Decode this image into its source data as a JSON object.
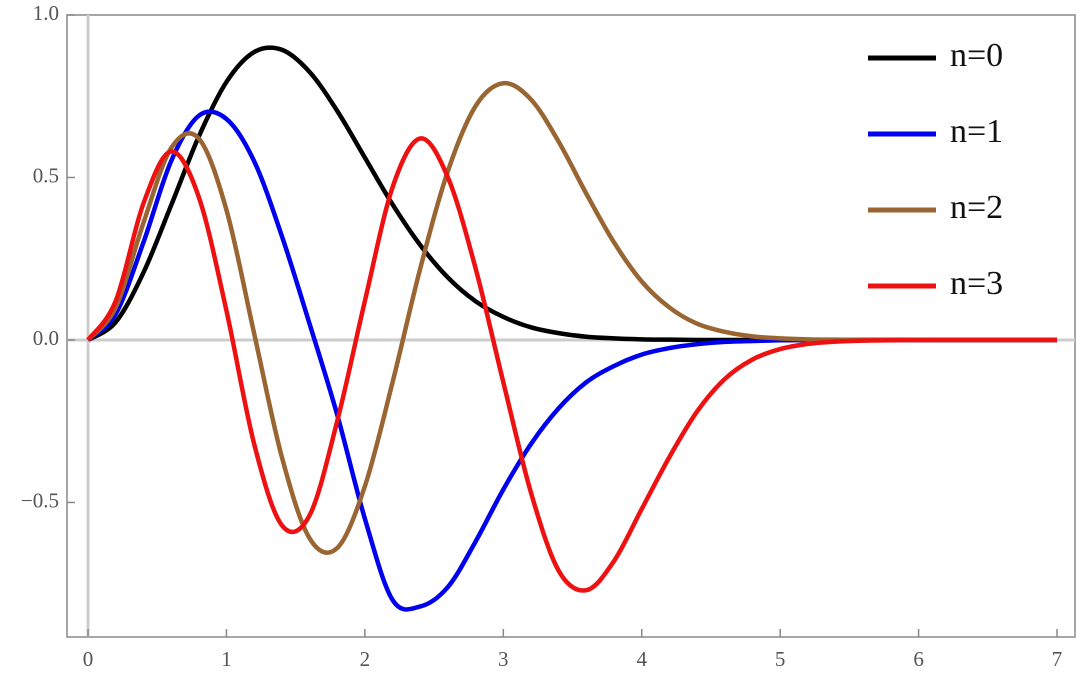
{
  "chart_data": {
    "type": "line",
    "x": [
      0,
      0.2,
      0.4,
      0.6,
      0.8,
      1.0,
      1.2,
      1.4,
      1.6,
      1.8,
      2.0,
      2.2,
      2.4,
      2.6,
      2.8,
      3.0,
      3.2,
      3.4,
      3.6,
      3.8,
      4.0,
      4.2,
      4.4,
      4.6,
      4.8,
      5.0,
      5.2,
      5.4,
      5.6,
      5.8,
      6.0,
      6.2,
      6.4,
      6.6,
      6.8,
      7.0
    ],
    "series": [
      {
        "name": "n=0",
        "color": "#000000",
        "values": [
          0,
          0.055,
          0.207,
          0.414,
          0.626,
          0.794,
          0.886,
          0.893,
          0.825,
          0.705,
          0.561,
          0.417,
          0.292,
          0.192,
          0.119,
          0.071,
          0.039,
          0.021,
          0.01,
          0.005,
          0.002,
          0.001,
          0,
          0,
          0,
          0,
          0,
          0,
          0,
          0,
          0,
          0,
          0,
          0,
          0,
          0
        ]
      },
      {
        "name": "n=1",
        "color": "#0000ee",
        "values": [
          0,
          0.08,
          0.3,
          0.55,
          0.69,
          0.68,
          0.55,
          0.32,
          0.05,
          -0.23,
          -0.55,
          -0.8,
          -0.82,
          -0.76,
          -0.62,
          -0.46,
          -0.32,
          -0.21,
          -0.13,
          -0.08,
          -0.045,
          -0.025,
          -0.013,
          -0.006,
          -0.003,
          -0.001,
          0,
          0,
          0,
          0,
          0,
          0,
          0,
          0,
          0,
          0
        ]
      },
      {
        "name": "n=2",
        "color": "#996633",
        "values": [
          0,
          0.1,
          0.36,
          0.59,
          0.62,
          0.4,
          0.02,
          -0.36,
          -0.61,
          -0.64,
          -0.45,
          -0.13,
          0.22,
          0.52,
          0.72,
          0.79,
          0.74,
          0.61,
          0.45,
          0.3,
          0.18,
          0.1,
          0.05,
          0.025,
          0.011,
          0.005,
          0.002,
          0.001,
          0,
          0,
          0,
          0,
          0,
          0,
          0,
          0
        ]
      },
      {
        "name": "n=3",
        "color": "#ee1111",
        "values": [
          0,
          0.12,
          0.42,
          0.58,
          0.44,
          0.09,
          -0.32,
          -0.57,
          -0.54,
          -0.25,
          0.12,
          0.47,
          0.62,
          0.5,
          0.22,
          -0.13,
          -0.47,
          -0.71,
          -0.77,
          -0.68,
          -0.52,
          -0.36,
          -0.22,
          -0.12,
          -0.06,
          -0.028,
          -0.012,
          -0.005,
          -0.002,
          -0.001,
          0,
          0,
          0,
          0,
          0,
          0
        ]
      }
    ],
    "xlim": [
      -0.152,
      7.13
    ],
    "ylim": [
      -0.914,
      1.0
    ],
    "xticks": [
      0,
      1,
      2,
      3,
      4,
      5,
      6,
      7
    ],
    "yticks": [
      {
        "value": 1.0,
        "label": "1.0"
      },
      0.5,
      {
        "value": 0,
        "label": "0.0"
      },
      {
        "value": -0.5,
        "label": "−0.5"
      }
    ],
    "legend": "top-right"
  }
}
